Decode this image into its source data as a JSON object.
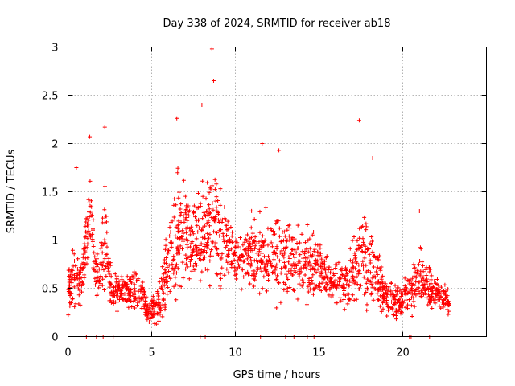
{
  "chart_data": {
    "type": "scatter",
    "title": "Day 338 of 2024, SRMTID for receiver ab18",
    "xlabel": "GPS time / hours",
    "ylabel": "SRMTID / TECUs",
    "xlim": [
      0,
      25
    ],
    "ylim": [
      0,
      3
    ],
    "xticks": [
      0,
      5,
      10,
      15,
      20
    ],
    "xtick_labels": [
      "0",
      "5",
      "10",
      "15",
      "20"
    ],
    "yticks": [
      0,
      0.5,
      1,
      1.5,
      2,
      2.5,
      3
    ],
    "ytick_labels": [
      "0",
      "0.5",
      "1",
      "1.5",
      "2",
      "2.5",
      "3"
    ],
    "grid": true,
    "marker": "+",
    "series": [
      {
        "name": "SRMTID",
        "color": "#ff0000",
        "x_range": [
          0,
          22.8
        ],
        "y_min": 0,
        "y_max": 2.98,
        "approx_points": 1800,
        "notes": "dense scatter of small red '+' markers",
        "envelope": [
          {
            "x": 0.0,
            "median": 0.5,
            "spread": 0.3
          },
          {
            "x": 0.3,
            "median": 0.6,
            "spread": 0.6
          },
          {
            "x": 0.8,
            "median": 0.5,
            "spread": 0.3
          },
          {
            "x": 1.0,
            "median": 0.9,
            "spread": 0.5
          },
          {
            "x": 1.3,
            "median": 1.3,
            "spread": 0.6
          },
          {
            "x": 1.8,
            "median": 0.55,
            "spread": 0.3
          },
          {
            "x": 2.2,
            "median": 1.0,
            "spread": 0.8
          },
          {
            "x": 2.6,
            "median": 0.45,
            "spread": 0.3
          },
          {
            "x": 3.5,
            "median": 0.45,
            "spread": 0.25
          },
          {
            "x": 4.3,
            "median": 0.5,
            "spread": 0.3
          },
          {
            "x": 4.8,
            "median": 0.25,
            "spread": 0.15
          },
          {
            "x": 5.5,
            "median": 0.35,
            "spread": 0.3
          },
          {
            "x": 6.0,
            "median": 0.8,
            "spread": 0.6
          },
          {
            "x": 6.7,
            "median": 1.1,
            "spread": 0.8
          },
          {
            "x": 7.3,
            "median": 1.0,
            "spread": 0.6
          },
          {
            "x": 8.0,
            "median": 1.0,
            "spread": 0.7
          },
          {
            "x": 8.7,
            "median": 1.2,
            "spread": 0.9
          },
          {
            "x": 9.5,
            "median": 0.9,
            "spread": 0.5
          },
          {
            "x": 10.5,
            "median": 0.8,
            "spread": 0.4
          },
          {
            "x": 11.5,
            "median": 0.9,
            "spread": 0.6
          },
          {
            "x": 12.5,
            "median": 0.8,
            "spread": 0.6
          },
          {
            "x": 13.5,
            "median": 0.8,
            "spread": 0.5
          },
          {
            "x": 14.5,
            "median": 0.75,
            "spread": 0.5
          },
          {
            "x": 15.5,
            "median": 0.6,
            "spread": 0.35
          },
          {
            "x": 16.5,
            "median": 0.55,
            "spread": 0.3
          },
          {
            "x": 17.5,
            "median": 0.8,
            "spread": 0.6
          },
          {
            "x": 18.3,
            "median": 0.7,
            "spread": 0.6
          },
          {
            "x": 19.0,
            "median": 0.4,
            "spread": 0.3
          },
          {
            "x": 20.0,
            "median": 0.35,
            "spread": 0.25
          },
          {
            "x": 21.0,
            "median": 0.6,
            "spread": 0.4
          },
          {
            "x": 22.0,
            "median": 0.45,
            "spread": 0.25
          },
          {
            "x": 22.8,
            "median": 0.35,
            "spread": 0.15
          }
        ],
        "peaks": [
          {
            "x": 0.5,
            "y": 1.75
          },
          {
            "x": 1.3,
            "y": 2.07
          },
          {
            "x": 2.2,
            "y": 2.17
          },
          {
            "x": 6.5,
            "y": 2.26
          },
          {
            "x": 8.0,
            "y": 2.4
          },
          {
            "x": 8.6,
            "y": 2.98
          },
          {
            "x": 8.7,
            "y": 2.65
          },
          {
            "x": 11.6,
            "y": 2.0
          },
          {
            "x": 12.6,
            "y": 1.93
          },
          {
            "x": 17.4,
            "y": 2.24
          },
          {
            "x": 18.2,
            "y": 1.85
          },
          {
            "x": 21.0,
            "y": 1.3
          }
        ],
        "zero_points": [
          1.1,
          1.7,
          2.1,
          2.7,
          7.9,
          8.2,
          11.5,
          13.0,
          13.5,
          14.3,
          14.7,
          20.4,
          20.5,
          21.6
        ]
      }
    ]
  }
}
